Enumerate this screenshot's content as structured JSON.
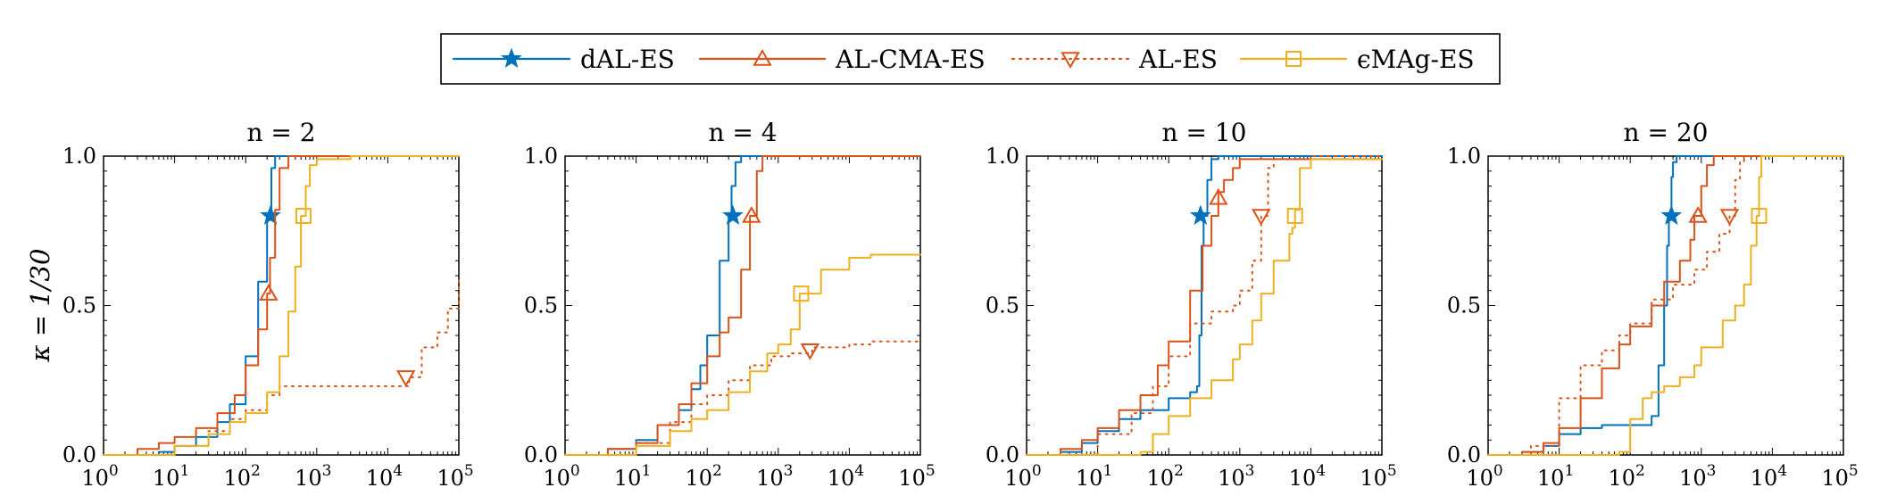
{
  "legend": [
    {
      "label": "dAL-ES",
      "color": "#0072BD",
      "marker": "star",
      "dash": "solid"
    },
    {
      "label": "AL-CMA-ES",
      "color": "#D95319",
      "marker": "triangle-up",
      "dash": "solid"
    },
    {
      "label": "AL-ES",
      "color": "#D95319",
      "marker": "triangle-down",
      "dash": "dotted"
    },
    {
      "label": "ϵMAg-ES",
      "color": "#EDB120",
      "marker": "square",
      "dash": "solid"
    }
  ],
  "ylabel": "κ = 1/30",
  "chart_data": [
    {
      "type": "line",
      "title": "n = 2",
      "xscale": "log",
      "xlim": [
        1,
        100000
      ],
      "ylim": [
        0,
        1
      ],
      "xticks": [
        "10^0",
        "10^1",
        "10^2",
        "10^3",
        "10^4",
        "10^5"
      ],
      "yticks": [
        "0.0",
        "0.5",
        "1.0"
      ],
      "series": [
        {
          "name": "dAL-ES",
          "x": [
            1,
            3,
            6,
            10,
            20,
            40,
            60,
            100,
            150,
            200,
            230,
            260,
            100000
          ],
          "y": [
            0,
            0,
            0.01,
            0.03,
            0.06,
            0.11,
            0.17,
            0.33,
            0.58,
            0.8,
            0.96,
            1.0,
            1.0
          ]
        },
        {
          "name": "AL-CMA-ES",
          "x": [
            1,
            3,
            6,
            10,
            20,
            40,
            70,
            100,
            150,
            200,
            220,
            260,
            300,
            400,
            100000
          ],
          "y": [
            0,
            0.02,
            0.04,
            0.06,
            0.09,
            0.14,
            0.2,
            0.3,
            0.42,
            0.54,
            0.66,
            0.82,
            0.96,
            1.0,
            1.0
          ]
        },
        {
          "name": "AL-ES",
          "x": [
            1,
            10,
            30,
            60,
            100,
            200,
            300,
            20000,
            30000,
            50000,
            70000,
            100000
          ],
          "y": [
            0,
            0.03,
            0.08,
            0.12,
            0.15,
            0.2,
            0.23,
            0.26,
            0.36,
            0.41,
            0.49,
            0.59
          ]
        },
        {
          "name": "ϵMAg-ES",
          "x": [
            1,
            10,
            30,
            60,
            100,
            200,
            300,
            400,
            500,
            600,
            700,
            800,
            1000,
            1500,
            3000,
            10000,
            100000
          ],
          "y": [
            0,
            0.03,
            0.07,
            0.11,
            0.14,
            0.21,
            0.33,
            0.48,
            0.63,
            0.8,
            0.9,
            0.97,
            0.99,
            0.99,
            1.0,
            1.0,
            1.0
          ]
        }
      ]
    },
    {
      "type": "line",
      "title": "n = 4",
      "xscale": "log",
      "xlim": [
        1,
        100000
      ],
      "ylim": [
        0,
        1
      ],
      "xticks": [
        "10^0",
        "10^1",
        "10^2",
        "10^3",
        "10^4",
        "10^5"
      ],
      "yticks": [
        "0.0",
        "0.5",
        "1.0"
      ],
      "series": [
        {
          "name": "dAL-ES",
          "x": [
            1,
            4,
            10,
            20,
            40,
            60,
            80,
            100,
            150,
            200,
            220,
            250,
            300,
            100000
          ],
          "y": [
            0,
            0.02,
            0.05,
            0.1,
            0.15,
            0.22,
            0.3,
            0.4,
            0.65,
            0.8,
            0.9,
            0.98,
            1.0,
            1.0
          ]
        },
        {
          "name": "AL-CMA-ES",
          "x": [
            1,
            4,
            10,
            20,
            40,
            60,
            100,
            150,
            200,
            300,
            400,
            500,
            600,
            100000
          ],
          "y": [
            0,
            0.02,
            0.04,
            0.1,
            0.17,
            0.24,
            0.33,
            0.41,
            0.46,
            0.62,
            0.8,
            0.95,
            1.0,
            1.0
          ]
        },
        {
          "name": "AL-ES",
          "x": [
            1,
            10,
            30,
            60,
            100,
            200,
            400,
            800,
            1500,
            3000,
            10000,
            20000,
            100000
          ],
          "y": [
            0,
            0.04,
            0.11,
            0.17,
            0.2,
            0.25,
            0.3,
            0.33,
            0.34,
            0.36,
            0.37,
            0.38,
            0.38
          ]
        },
        {
          "name": "ϵMAg-ES",
          "x": [
            1,
            10,
            30,
            60,
            100,
            200,
            400,
            700,
            1000,
            1500,
            2000,
            4000,
            10000,
            20000,
            100000
          ],
          "y": [
            0,
            0.03,
            0.08,
            0.12,
            0.15,
            0.21,
            0.28,
            0.34,
            0.37,
            0.42,
            0.54,
            0.62,
            0.66,
            0.67,
            0.67
          ]
        }
      ]
    },
    {
      "type": "line",
      "title": "n = 10",
      "xscale": "log",
      "xlim": [
        1,
        100000
      ],
      "ylim": [
        0,
        1
      ],
      "xticks": [
        "10^0",
        "10^1",
        "10^2",
        "10^3",
        "10^4",
        "10^5"
      ],
      "yticks": [
        "0.0",
        "0.5",
        "1.0"
      ],
      "series": [
        {
          "name": "dAL-ES",
          "x": [
            1,
            3,
            6,
            10,
            20,
            40,
            100,
            200,
            250,
            270,
            290,
            310,
            350,
            400,
            500,
            100000
          ],
          "y": [
            0,
            0.01,
            0.04,
            0.08,
            0.12,
            0.15,
            0.19,
            0.21,
            0.23,
            0.4,
            0.7,
            0.8,
            0.92,
            0.99,
            1.0,
            1.0
          ]
        },
        {
          "name": "AL-CMA-ES",
          "x": [
            1,
            3,
            6,
            10,
            20,
            40,
            70,
            100,
            200,
            300,
            400,
            500,
            600,
            800,
            1000,
            100000
          ],
          "y": [
            0,
            0.02,
            0.05,
            0.09,
            0.15,
            0.2,
            0.3,
            0.38,
            0.55,
            0.7,
            0.8,
            0.88,
            0.92,
            0.96,
            0.99,
            0.99
          ]
        },
        {
          "name": "AL-ES",
          "x": [
            1,
            10,
            30,
            60,
            100,
            200,
            400,
            800,
            1000,
            1500,
            2000,
            2500,
            3000,
            10000,
            100000
          ],
          "y": [
            0,
            0.07,
            0.14,
            0.23,
            0.33,
            0.44,
            0.48,
            0.5,
            0.55,
            0.65,
            0.8,
            0.96,
            0.99,
            1.0,
            1.0
          ]
        },
        {
          "name": "ϵMAg-ES",
          "x": [
            1,
            20,
            40,
            60,
            100,
            200,
            400,
            800,
            1000,
            1500,
            2000,
            3000,
            5000,
            5500,
            6000,
            7000,
            10000,
            100000
          ],
          "y": [
            0,
            0,
            0.01,
            0.07,
            0.13,
            0.19,
            0.25,
            0.32,
            0.37,
            0.45,
            0.54,
            0.65,
            0.74,
            0.76,
            0.82,
            0.96,
            0.99,
            0.99
          ]
        }
      ]
    },
    {
      "type": "line",
      "title": "n = 20",
      "xscale": "log",
      "xlim": [
        1,
        100000
      ],
      "ylim": [
        0,
        1
      ],
      "xticks": [
        "10^0",
        "10^1",
        "10^2",
        "10^3",
        "10^4",
        "10^5"
      ],
      "yticks": [
        "0.0",
        "0.5",
        "1.0"
      ],
      "series": [
        {
          "name": "dAL-ES",
          "x": [
            1,
            3,
            6,
            10,
            20,
            40,
            100,
            200,
            250,
            300,
            330,
            350,
            380,
            400,
            450,
            100000
          ],
          "y": [
            0,
            0.01,
            0.03,
            0.07,
            0.09,
            0.1,
            0.1,
            0.13,
            0.3,
            0.5,
            0.7,
            0.8,
            0.93,
            0.98,
            1.0,
            1.0
          ]
        },
        {
          "name": "AL-CMA-ES",
          "x": [
            1,
            3,
            6,
            10,
            20,
            40,
            70,
            100,
            200,
            300,
            500,
            700,
            800,
            1000,
            1200,
            1500,
            100000
          ],
          "y": [
            0,
            0.01,
            0.04,
            0.09,
            0.19,
            0.29,
            0.37,
            0.43,
            0.5,
            0.58,
            0.65,
            0.72,
            0.8,
            0.9,
            0.97,
            1.0,
            1.0
          ]
        },
        {
          "name": "AL-ES",
          "x": [
            1,
            4,
            10,
            20,
            40,
            70,
            100,
            200,
            400,
            800,
            1200,
            1800,
            2500,
            3000,
            3500,
            4000,
            100000
          ],
          "y": [
            0,
            0.03,
            0.19,
            0.3,
            0.35,
            0.4,
            0.44,
            0.52,
            0.57,
            0.62,
            0.68,
            0.74,
            0.8,
            0.92,
            0.98,
            1.0,
            1.0
          ]
        },
        {
          "name": "ϵMAg-ES",
          "x": [
            1,
            40,
            70,
            100,
            150,
            200,
            300,
            500,
            800,
            1000,
            2000,
            3000,
            4000,
            5000,
            6000,
            6500,
            7000,
            100000
          ],
          "y": [
            0,
            0,
            0.01,
            0.12,
            0.19,
            0.21,
            0.23,
            0.26,
            0.3,
            0.36,
            0.45,
            0.5,
            0.57,
            0.7,
            0.8,
            0.93,
            1.0,
            1.0
          ]
        }
      ]
    }
  ]
}
